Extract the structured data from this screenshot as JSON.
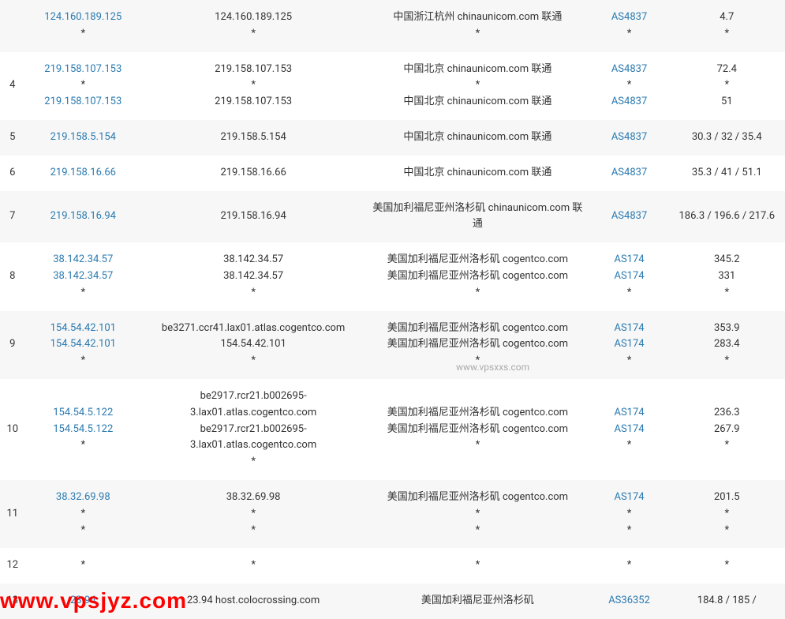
{
  "colors": {
    "link": "#2a7ab0",
    "text": "#333333",
    "row_odd": "#ffffff",
    "row_even": "#f7f7f7",
    "watermark_center": "#aaaaaa",
    "watermark_red": "#ff0000"
  },
  "watermarks": {
    "center": "www.vpsxxs.com",
    "bottom": "www.vpsjyz.com"
  },
  "rows": [
    {
      "hop": "",
      "parity": "even",
      "ips": [
        "124.160.189.125",
        "*"
      ],
      "hosts": [
        "124.160.189.125",
        "*"
      ],
      "locs": [
        "中国浙江杭州 chinaunicom.com 联通",
        "*"
      ],
      "asns": [
        "AS4837",
        "*"
      ],
      "rtts": [
        "4.7",
        "*"
      ]
    },
    {
      "hop": "4",
      "parity": "odd",
      "ips": [
        "219.158.107.153",
        "*",
        "219.158.107.153"
      ],
      "hosts": [
        "219.158.107.153",
        "*",
        "219.158.107.153"
      ],
      "locs": [
        "中国北京 chinaunicom.com 联通",
        "*",
        "中国北京 chinaunicom.com 联通"
      ],
      "asns": [
        "AS4837",
        "*",
        "AS4837"
      ],
      "rtts": [
        "72.4",
        "*",
        "51"
      ]
    },
    {
      "hop": "5",
      "parity": "even",
      "ips": [
        "219.158.5.154"
      ],
      "hosts": [
        "219.158.5.154"
      ],
      "locs": [
        "中国北京 chinaunicom.com 联通"
      ],
      "asns": [
        "AS4837"
      ],
      "rtts": [
        "30.3 / 32 / 35.4"
      ]
    },
    {
      "hop": "6",
      "parity": "odd",
      "ips": [
        "219.158.16.66"
      ],
      "hosts": [
        "219.158.16.66"
      ],
      "locs": [
        "中国北京 chinaunicom.com 联通"
      ],
      "asns": [
        "AS4837"
      ],
      "rtts": [
        "35.3 / 41 / 51.1"
      ]
    },
    {
      "hop": "7",
      "parity": "even",
      "ips": [
        "219.158.16.94"
      ],
      "hosts": [
        "219.158.16.94"
      ],
      "locs": [
        "美国加利福尼亚州洛杉矶 chinaunicom.com 联通"
      ],
      "asns": [
        "AS4837"
      ],
      "rtts": [
        "186.3 / 196.6 / 217.6"
      ]
    },
    {
      "hop": "8",
      "parity": "odd",
      "ips": [
        "38.142.34.57",
        "38.142.34.57",
        "*"
      ],
      "hosts": [
        "38.142.34.57",
        "38.142.34.57",
        "*"
      ],
      "locs": [
        "美国加利福尼亚州洛杉矶 cogentco.com",
        "美国加利福尼亚州洛杉矶 cogentco.com",
        "*"
      ],
      "asns": [
        "AS174",
        "AS174",
        "*"
      ],
      "rtts": [
        "345.2",
        "331",
        "*"
      ]
    },
    {
      "hop": "9",
      "parity": "even",
      "ips": [
        "154.54.42.101",
        "154.54.42.101",
        "*"
      ],
      "hosts": [
        "be3271.ccr41.lax01.atlas.cogentco.com",
        "154.54.42.101",
        "*"
      ],
      "locs": [
        "美国加利福尼亚州洛杉矶 cogentco.com",
        "美国加利福尼亚州洛杉矶 cogentco.com",
        "*"
      ],
      "asns": [
        "AS174",
        "AS174",
        "*"
      ],
      "rtts": [
        "353.9",
        "283.4",
        "*"
      ]
    },
    {
      "hop": "10",
      "parity": "odd",
      "ips": [
        "154.54.5.122",
        "154.54.5.122",
        "*"
      ],
      "hosts": [
        "be2917.rcr21.b002695-3.lax01.atlas.cogentco.com",
        "be2917.rcr21.b002695-3.lax01.atlas.cogentco.com",
        "*"
      ],
      "locs": [
        "美国加利福尼亚州洛杉矶 cogentco.com",
        "美国加利福尼亚州洛杉矶 cogentco.com",
        "*"
      ],
      "asns": [
        "AS174",
        "AS174",
        "*"
      ],
      "rtts": [
        "236.3",
        "267.9",
        "*"
      ]
    },
    {
      "hop": "11",
      "parity": "even",
      "ips": [
        "38.32.69.98",
        "*",
        "*"
      ],
      "hosts": [
        "38.32.69.98",
        "*",
        "*"
      ],
      "locs": [
        "美国加利福尼亚州洛杉矶 cogentco.com",
        "*",
        "*"
      ],
      "asns": [
        "AS174",
        "*",
        "*"
      ],
      "rtts": [
        "201.5",
        "*",
        "*"
      ]
    },
    {
      "hop": "12",
      "parity": "odd",
      "ips": [
        "*"
      ],
      "hosts": [
        "*"
      ],
      "locs": [
        "*"
      ],
      "asns": [
        "*"
      ],
      "rtts": [
        "*"
      ]
    },
    {
      "hop": "13",
      "parity": "even",
      "ips": [
        "23.94"
      ],
      "hosts": [
        "23.94          host.colocrossing.com"
      ],
      "locs": [
        "美国加利福尼亚州洛杉矶"
      ],
      "asns": [
        "AS36352"
      ],
      "rtts": [
        "184.8 / 185 /"
      ]
    }
  ]
}
